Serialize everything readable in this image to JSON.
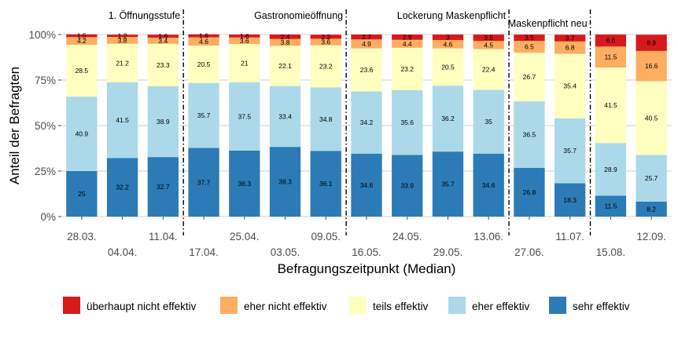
{
  "chart_data": {
    "type": "bar",
    "stacked": true,
    "ylabel": "Anteil der Befragten",
    "xlabel": "Befragungszeitpunkt (Median)",
    "y_ticks": [
      "0%",
      "25%",
      "50%",
      "75%",
      "100%"
    ],
    "ylim": [
      0,
      100
    ],
    "categories": [
      "28.03.",
      "04.04.",
      "11.04.",
      "17.04.",
      "25.04.",
      "03.05.",
      "09.05.",
      "16.05.",
      "24.05.",
      "29.05.",
      "13.06.",
      "27.06.",
      "11.07.",
      "15.08.",
      "12.09."
    ],
    "series": [
      {
        "name": "sehr effektiv",
        "color": "#2c7bb6",
        "values": [
          25,
          32.2,
          32.7,
          37.7,
          36.3,
          38.3,
          36.1,
          34.6,
          33.9,
          35.7,
          34.6,
          26.8,
          18.3,
          11.5,
          8.2
        ]
      },
      {
        "name": "eher effektiv",
        "color": "#abd9e9",
        "values": [
          40.9,
          41.5,
          38.9,
          35.7,
          37.5,
          33.4,
          34.8,
          34.2,
          35.6,
          36.2,
          35,
          36.5,
          35.7,
          28.9,
          25.7
        ]
      },
      {
        "name": "teils effektiv",
        "color": "#ffffbf",
        "values": [
          28.5,
          21.2,
          23.3,
          20.5,
          21,
          22.1,
          23.2,
          23.6,
          23.2,
          20.5,
          22.4,
          26.7,
          35.4,
          41.5,
          40.5
        ]
      },
      {
        "name": "eher nicht effektiv",
        "color": "#fdae61",
        "values": [
          4.2,
          3.8,
          3.4,
          4.6,
          3.6,
          3.8,
          3.6,
          4.9,
          4.4,
          4.6,
          4.5,
          6.5,
          6.8,
          11.5,
          16.6
        ]
      },
      {
        "name": "überhaupt nicht effektiv",
        "color": "#d7191c",
        "values": [
          1.5,
          1.2,
          1.6,
          1.6,
          1.6,
          2.4,
          2.2,
          2.7,
          2.9,
          3,
          3.5,
          3.5,
          3.7,
          6.6,
          8.9
        ]
      }
    ],
    "legend_order": [
      "überhaupt nicht effektiv",
      "eher nicht effektiv",
      "teils effektiv",
      "eher effektiv",
      "sehr effektiv"
    ],
    "legend_position": "bottom",
    "grid": true,
    "annotations": [
      {
        "label": "1. Öffnungsstufe",
        "after_index": 2
      },
      {
        "label": "Gastronomieöffnung",
        "after_index": 6
      },
      {
        "label": "Lockerung Maskenpflicht",
        "after_index": 10
      },
      {
        "label": "Maskenpflicht neu",
        "after_index": 12
      }
    ]
  }
}
